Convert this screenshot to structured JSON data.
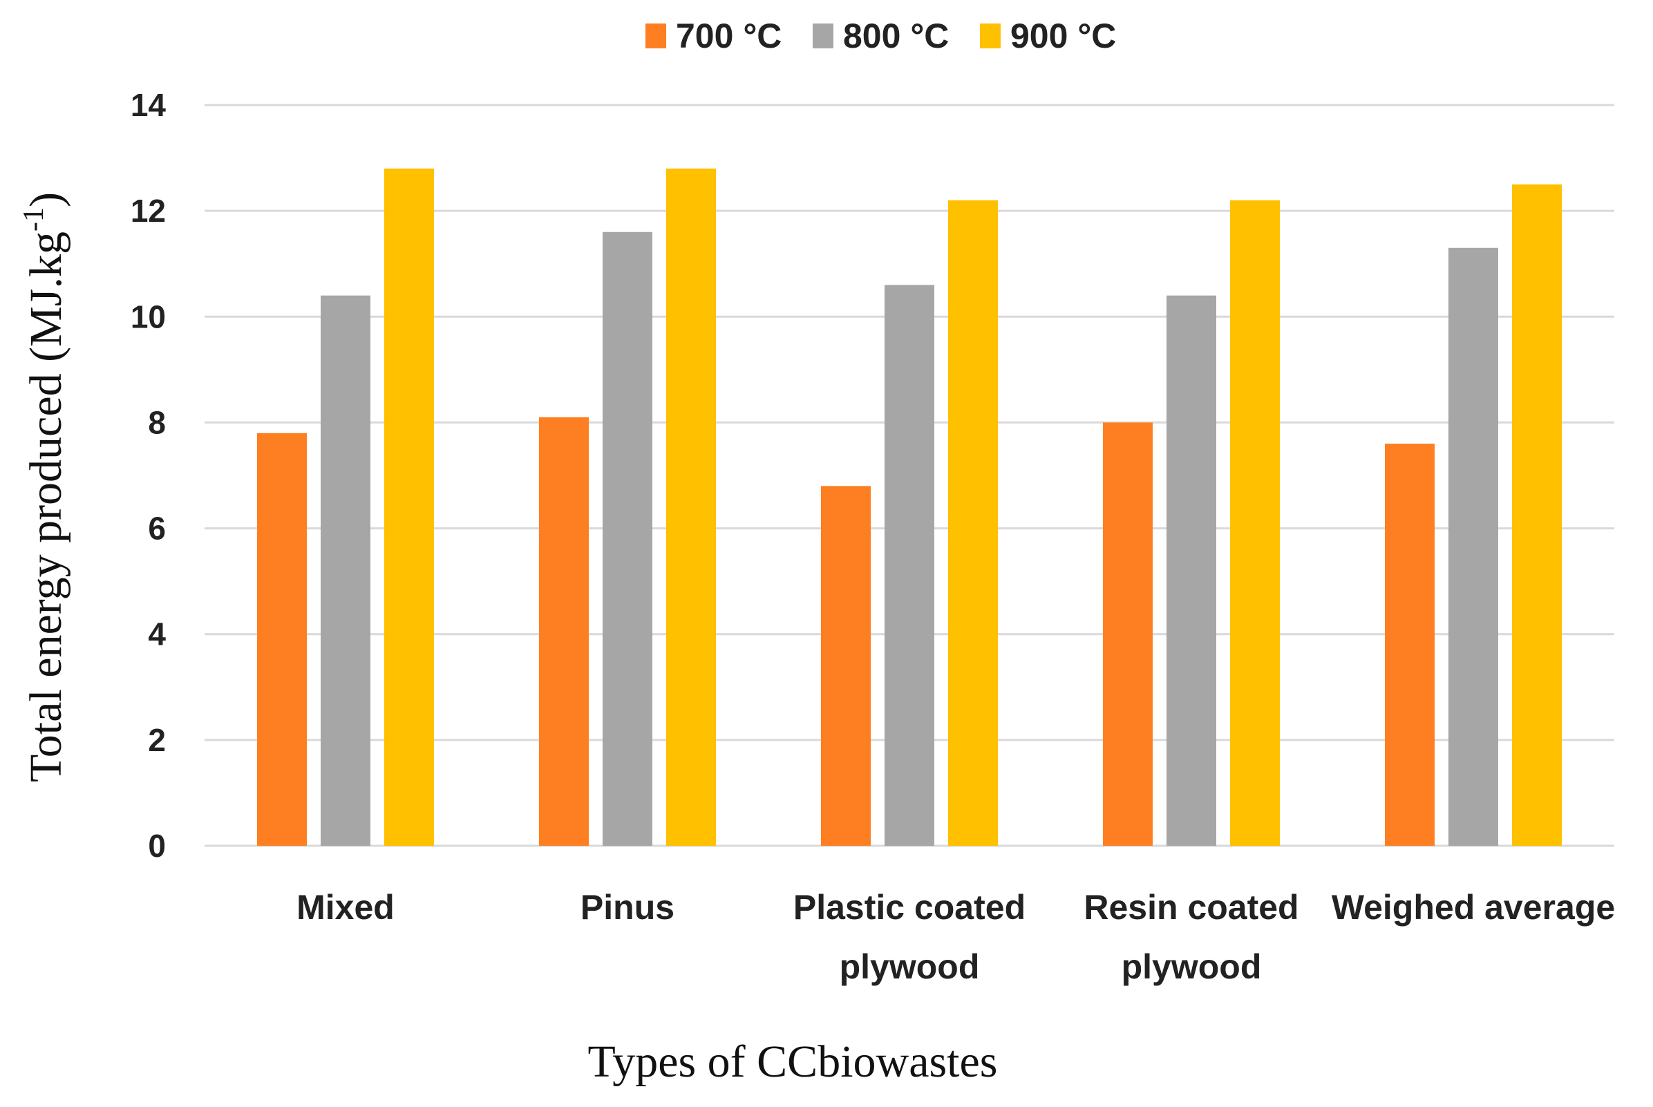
{
  "chart_data": {
    "type": "bar",
    "categories": [
      [
        "Mixed"
      ],
      [
        "Pinus"
      ],
      [
        "Plastic coated",
        "plywood"
      ],
      [
        "Resin coated",
        "plywood"
      ],
      [
        "Weighed average"
      ]
    ],
    "series": [
      {
        "name": "700 °C",
        "color": "#fd7f22",
        "values": [
          7.8,
          8.1,
          6.8,
          8.0,
          7.6
        ]
      },
      {
        "name": "800 °C",
        "color": "#a6a6a6",
        "values": [
          10.4,
          11.6,
          10.6,
          10.4,
          11.3
        ]
      },
      {
        "name": "900 °C",
        "color": "#ffc000",
        "values": [
          12.8,
          12.8,
          12.2,
          12.2,
          12.5
        ]
      }
    ],
    "ylabel_main": "Total energy produced (MJ.kg",
    "ylabel_sup": "-1",
    "ylabel_end": ")",
    "xlabel": "Types of CCbiowastes",
    "ylim": [
      0,
      14
    ],
    "yticks": [
      0,
      2,
      4,
      6,
      8,
      10,
      12,
      14
    ],
    "grid": true,
    "legend_position": "top-center"
  }
}
